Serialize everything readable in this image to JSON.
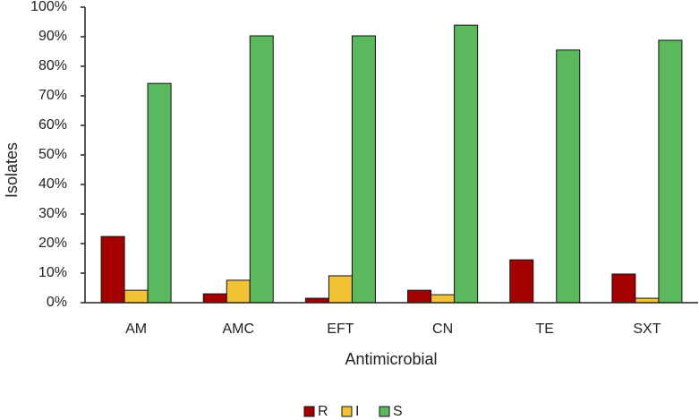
{
  "chart_data": {
    "type": "bar",
    "x_label": "Antimicrobial",
    "y_label": "Isolates",
    "categories": [
      "AM",
      "AMC",
      "EFT",
      "CN",
      "TE",
      "SXT"
    ],
    "series": [
      {
        "name": "R",
        "color": "#a50000",
        "values": [
          22.4,
          3,
          1.5,
          4.2,
          14.5,
          9.7
        ]
      },
      {
        "name": "I",
        "color": "#f2c237",
        "values": [
          4.2,
          7.6,
          9.1,
          2.7,
          0,
          1.5
        ]
      },
      {
        "name": "S",
        "color": "#5cb85c",
        "values": [
          74.2,
          90.3,
          90.3,
          93.9,
          85.5,
          88.8
        ]
      }
    ],
    "ylim": [
      0,
      100
    ],
    "yticks": [
      {
        "value": 0,
        "label": "0%"
      },
      {
        "value": 10,
        "label": "10%"
      },
      {
        "value": 20,
        "label": "20%"
      },
      {
        "value": 30,
        "label": "30%"
      },
      {
        "value": 40,
        "label": "40%"
      },
      {
        "value": 50,
        "label": "50%"
      },
      {
        "value": 60,
        "label": "60%"
      },
      {
        "value": 70,
        "label": "70%"
      },
      {
        "value": 80,
        "label": "80%"
      },
      {
        "value": 90,
        "label": "90%"
      },
      {
        "value": 100,
        "label": "100%"
      }
    ],
    "grid": false,
    "legend": "bottom"
  }
}
